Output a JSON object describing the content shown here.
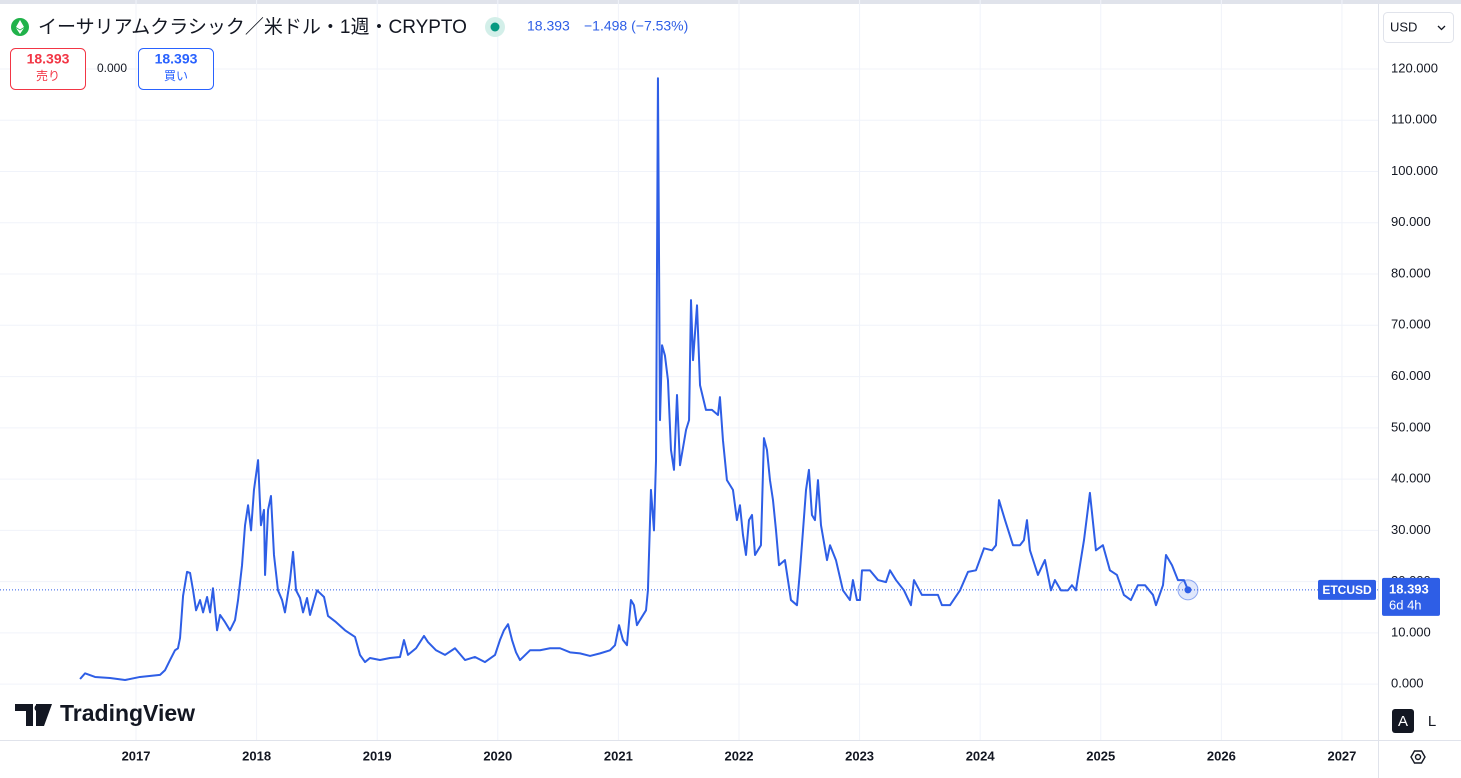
{
  "header": {
    "title": "イーサリアムクラシック／米ドル・1週・CRYPTO",
    "price": "18.393",
    "change": "−1.498 (−7.53%)",
    "sell_price": "18.393",
    "sell_label": "売り",
    "spread": "0.000",
    "buy_price": "18.393",
    "buy_label": "買い",
    "currency": "USD",
    "logo": "TradingView",
    "auto_button": "A",
    "log_button": "L"
  },
  "chart_data": {
    "type": "line",
    "countdown": "6d 4h",
    "xlim": [
      2015.872,
      2027.299
    ],
    "xticks": [
      2017,
      2018,
      2019,
      2020,
      2021,
      2022,
      2023,
      2024,
      2025,
      2026,
      2027
    ],
    "ylim": [
      -10.9,
      131.9
    ],
    "yticks": [
      {
        "value": 0,
        "label": "0.000"
      },
      {
        "value": 10,
        "label": "10.000"
      },
      {
        "value": 20,
        "label": "20.000"
      },
      {
        "value": 30,
        "label": "30.000"
      },
      {
        "value": 40,
        "label": "40.000"
      },
      {
        "value": 50,
        "label": "50.000"
      },
      {
        "value": 60,
        "label": "60.000"
      },
      {
        "value": 70,
        "label": "70.000"
      },
      {
        "value": 80,
        "label": "80.000"
      },
      {
        "value": 90,
        "label": "90.000"
      },
      {
        "value": 100,
        "label": "100.000"
      },
      {
        "value": 110,
        "label": "110.000"
      },
      {
        "value": 120,
        "label": "120.000"
      }
    ],
    "grid": true,
    "x": [
      2016.536,
      2016.577,
      2016.66,
      2016.784,
      2016.909,
      2017.033,
      2017.199,
      2017.24,
      2017.282,
      2017.323,
      2017.348,
      2017.365,
      2017.39,
      2017.423,
      2017.448,
      2017.473,
      2017.498,
      2017.531,
      2017.556,
      2017.589,
      2017.614,
      2017.638,
      2017.672,
      2017.697,
      2017.738,
      2017.779,
      2017.821,
      2017.846,
      2017.879,
      2017.904,
      2017.929,
      2017.954,
      2017.978,
      2018.012,
      2018.036,
      2018.061,
      2018.07,
      2018.095,
      2018.119,
      2018.144,
      2018.177,
      2018.211,
      2018.235,
      2018.277,
      2018.302,
      2018.327,
      2018.36,
      2018.385,
      2018.418,
      2018.443,
      2018.501,
      2018.559,
      2018.592,
      2018.658,
      2018.733,
      2018.816,
      2018.857,
      2018.899,
      2018.94,
      2019.023,
      2019.106,
      2019.189,
      2019.222,
      2019.255,
      2019.322,
      2019.388,
      2019.421,
      2019.488,
      2019.562,
      2019.645,
      2019.728,
      2019.811,
      2019.894,
      2019.977,
      2020.018,
      2020.051,
      2020.085,
      2020.118,
      2020.151,
      2020.184,
      2020.267,
      2020.35,
      2020.433,
      2020.516,
      2020.599,
      2020.682,
      2020.765,
      2020.848,
      2020.93,
      2020.972,
      2021.005,
      2021.038,
      2021.071,
      2021.104,
      2021.129,
      2021.154,
      2021.179,
      2021.229,
      2021.245,
      2021.27,
      2021.295,
      2021.312,
      2021.328,
      2021.345,
      2021.362,
      2021.386,
      2021.411,
      2021.436,
      2021.461,
      2021.486,
      2021.511,
      2021.561,
      2021.586,
      2021.602,
      2021.619,
      2021.652,
      2021.677,
      2021.726,
      2021.776,
      2021.826,
      2021.842,
      2021.867,
      2021.9,
      2021.95,
      2021.983,
      2022.008,
      2022.033,
      2022.058,
      2022.083,
      2022.108,
      2022.133,
      2022.182,
      2022.207,
      2022.232,
      2022.257,
      2022.282,
      2022.307,
      2022.332,
      2022.381,
      2022.406,
      2022.431,
      2022.481,
      2022.506,
      2022.531,
      2022.556,
      2022.58,
      2022.605,
      2022.63,
      2022.655,
      2022.68,
      2022.73,
      2022.755,
      2022.804,
      2022.862,
      2022.92,
      2022.945,
      2022.978,
      2023.003,
      2023.02,
      2023.086,
      2023.153,
      2023.219,
      2023.252,
      2023.302,
      2023.368,
      2023.426,
      2023.451,
      2023.517,
      2023.584,
      2023.65,
      2023.683,
      2023.75,
      2023.833,
      2023.899,
      2023.965,
      2024.032,
      2024.098,
      2024.131,
      2024.156,
      2024.206,
      2024.272,
      2024.33,
      2024.363,
      2024.388,
      2024.413,
      2024.479,
      2024.537,
      2024.587,
      2024.62,
      2024.67,
      2024.728,
      2024.761,
      2024.794,
      2024.861,
      2024.91,
      2024.96,
      2025.018,
      2025.076,
      2025.134,
      2025.192,
      2025.25,
      2025.308,
      2025.367,
      2025.433,
      2025.458,
      2025.516,
      2025.541,
      2025.591,
      2025.64,
      2025.69,
      2025.723
    ],
    "series": [
      {
        "name": "ETCUSD",
        "color": "#2e5ee6",
        "values": [
          1.0,
          2.1,
          1.4,
          1.2,
          0.8,
          1.4,
          1.8,
          2.7,
          4.7,
          6.6,
          7.0,
          9.0,
          17.2,
          21.9,
          21.7,
          18.3,
          14.4,
          16.4,
          14.0,
          17.0,
          14.0,
          18.7,
          10.5,
          13.5,
          12.1,
          10.5,
          12.5,
          16.4,
          23.2,
          31.0,
          34.9,
          30.0,
          37.9,
          43.7,
          31.0,
          34.0,
          21.3,
          34.0,
          36.7,
          25.2,
          18.3,
          16.4,
          14.0,
          20.3,
          25.8,
          18.3,
          16.8,
          14.0,
          16.8,
          13.5,
          18.3,
          17.0,
          13.3,
          12.1,
          10.5,
          9.2,
          5.7,
          4.3,
          5.1,
          4.7,
          5.1,
          5.3,
          8.6,
          5.7,
          7.0,
          9.4,
          8.2,
          6.6,
          5.7,
          7.0,
          4.7,
          5.3,
          4.3,
          5.7,
          8.6,
          10.5,
          11.7,
          8.6,
          6.2,
          4.7,
          6.6,
          6.6,
          7.0,
          7.0,
          6.2,
          6.0,
          5.5,
          6.0,
          6.6,
          7.6,
          11.5,
          8.6,
          7.6,
          16.4,
          15.4,
          11.5,
          12.5,
          14.4,
          18.3,
          37.9,
          30.0,
          43.7,
          118.2,
          51.5,
          66.1,
          64.1,
          59.3,
          45.7,
          41.8,
          56.4,
          42.7,
          49.6,
          51.5,
          74.9,
          63.2,
          73.9,
          58.3,
          53.5,
          53.5,
          52.5,
          56.0,
          47.6,
          39.8,
          37.9,
          32.0,
          34.9,
          29.1,
          25.2,
          32.0,
          33.0,
          25.2,
          27.1,
          48.0,
          45.7,
          39.8,
          35.9,
          30.0,
          23.2,
          24.2,
          20.3,
          16.4,
          15.4,
          22.2,
          30.0,
          37.9,
          41.8,
          33.0,
          32.0,
          39.8,
          31.0,
          24.2,
          27.1,
          24.2,
          18.3,
          16.4,
          20.3,
          16.4,
          16.4,
          22.2,
          22.2,
          20.3,
          19.9,
          22.2,
          20.3,
          18.3,
          15.4,
          20.3,
          17.4,
          17.4,
          17.4,
          15.4,
          15.4,
          18.3,
          21.9,
          22.2,
          26.5,
          26.1,
          27.1,
          35.9,
          32.0,
          27.1,
          27.1,
          28.1,
          32.0,
          26.1,
          21.3,
          24.2,
          18.3,
          20.3,
          18.3,
          18.3,
          19.3,
          18.3,
          28.1,
          37.3,
          26.1,
          27.1,
          22.2,
          21.3,
          17.4,
          16.4,
          19.3,
          19.3,
          17.4,
          15.4,
          19.3,
          25.2,
          23.2,
          20.3,
          20.3,
          18.393
        ]
      }
    ]
  }
}
